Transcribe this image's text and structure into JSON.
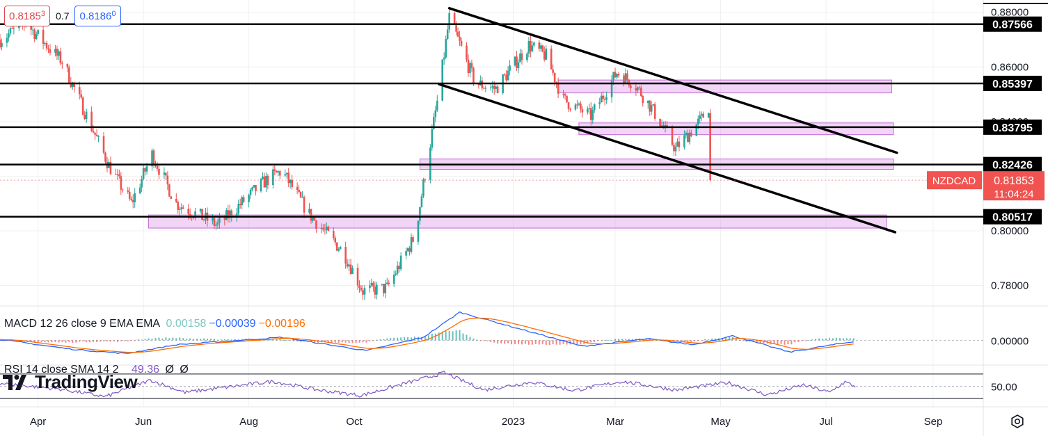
{
  "header": {
    "sell_price": "0.8185",
    "sell_price_sup": "3",
    "spread": "0.7",
    "buy_price": "0.8186",
    "buy_price_sup": "0"
  },
  "macd_legend": {
    "label": "MACD 12 26 close 9 EMA EMA",
    "histogram": "0.00158",
    "macd": "−0.00039",
    "signal": "−0.00196",
    "colors": {
      "histogram": "#7fc7c1",
      "macd": "#2962ff",
      "signal": "#ff6d00"
    }
  },
  "rsi_legend": {
    "label": "RSI 14 close SMA 14 2",
    "value": "49.36",
    "extra1": "Ø",
    "extra2": "Ø",
    "color": "#7e57c2"
  },
  "brand": {
    "name": "TradingView"
  },
  "symbol": {
    "name": "NZDCAD",
    "price": "0.81853",
    "countdown": "11:04:24",
    "color": "#f05350"
  },
  "chart_data": {
    "type": "candlestick",
    "symbol": "NZDCAD",
    "price_axis": {
      "ticks": [
        "0.88000",
        "0.86000",
        "0.84000",
        "0.82000",
        "0.80000",
        "0.78000"
      ],
      "range": [
        0.7725,
        0.8845
      ]
    },
    "time_axis": {
      "labels": [
        "Apr",
        "Jun",
        "Aug",
        "Oct",
        "2023",
        "Mar",
        "May",
        "Jul",
        "Sep"
      ],
      "range": [
        "2022-03-10",
        "2023-09-30"
      ]
    },
    "horizontal_levels": [
      {
        "label": "0.87566",
        "value": 0.87566
      },
      {
        "label": "0.85397",
        "value": 0.85397
      },
      {
        "label": "0.83795",
        "value": 0.83795
      },
      {
        "label": "0.82426",
        "value": 0.82426
      },
      {
        "label": "0.80517",
        "value": 0.80517
      }
    ],
    "zones": [
      {
        "from": "2023-01-27",
        "to": "2023-08-08",
        "low": 0.8505,
        "high": 0.8552
      },
      {
        "from": "2023-02-08",
        "to": "2023-08-09",
        "low": 0.8352,
        "high": 0.8395
      },
      {
        "from": "2022-11-08",
        "to": "2023-08-09",
        "low": 0.8225,
        "high": 0.8263
      },
      {
        "from": "2022-06-04",
        "to": "2023-08-05",
        "low": 0.801,
        "high": 0.8058
      }
    ],
    "trendlines": [
      {
        "from": {
          "date": "2022-11-25",
          "price": 0.8815
        },
        "to": {
          "date": "2023-08-11",
          "price": 0.8286
        }
      },
      {
        "from": {
          "date": "2022-11-19",
          "price": 0.8537
        },
        "to": {
          "date": "2023-08-10",
          "price": 0.7995
        }
      }
    ],
    "candles": {
      "start": "2022-03-10",
      "interval_days": 1,
      "count": 412,
      "anchors": [
        [
          "2022-03-10",
          0.87
        ],
        [
          "2022-03-25",
          0.876
        ],
        [
          "2022-04-15",
          0.862
        ],
        [
          "2022-05-12",
          0.824
        ],
        [
          "2022-05-25",
          0.81
        ],
        [
          "2022-06-06",
          0.828
        ],
        [
          "2022-06-20",
          0.81
        ],
        [
          "2022-07-14",
          0.802
        ],
        [
          "2022-08-10",
          0.818
        ],
        [
          "2022-08-20",
          0.822
        ],
        [
          "2022-09-05",
          0.806
        ],
        [
          "2022-09-25",
          0.792
        ],
        [
          "2022-10-06",
          0.778
        ],
        [
          "2022-10-20",
          0.779
        ],
        [
          "2022-11-05",
          0.798
        ],
        [
          "2022-11-19",
          0.851
        ],
        [
          "2022-11-25",
          0.878
        ],
        [
          "2022-12-10",
          0.854
        ],
        [
          "2022-12-22",
          0.852
        ],
        [
          "2023-01-10",
          0.868
        ],
        [
          "2023-01-20",
          0.864
        ],
        [
          "2023-01-30",
          0.848
        ],
        [
          "2023-02-15",
          0.842
        ],
        [
          "2023-03-02",
          0.858
        ],
        [
          "2023-03-12",
          0.854
        ],
        [
          "2023-03-22",
          0.845
        ],
        [
          "2023-04-05",
          0.83
        ],
        [
          "2023-04-20",
          0.841
        ],
        [
          "2023-04-30",
          0.852
        ],
        [
          "2023-05-08",
          0.849
        ],
        [
          "2023-05-15",
          0.847
        ],
        [
          "2023-05-20",
          0.838
        ],
        [
          "2023-05-28",
          0.822
        ],
        [
          "2023-06-08",
          0.81
        ],
        [
          "2023-06-18",
          0.825
        ],
        [
          "2023-06-26",
          0.817
        ],
        [
          "2023-07-03",
          0.807
        ],
        [
          "2023-07-12",
          0.823
        ],
        [
          "2023-07-18",
          0.819
        ]
      ],
      "last_close": 0.81853
    },
    "macd": {
      "axis_tick": "0.00000",
      "anchors": [
        [
          "2022-03-10",
          0.0003
        ],
        [
          "2022-04-20",
          -0.003
        ],
        [
          "2022-05-22",
          -0.0045
        ],
        [
          "2022-06-20",
          -0.0015
        ],
        [
          "2022-08-20",
          0.001
        ],
        [
          "2022-10-08",
          -0.0035
        ],
        [
          "2022-11-10",
          0.001
        ],
        [
          "2022-12-01",
          0.0095
        ],
        [
          "2023-01-10",
          0.003
        ],
        [
          "2023-02-10",
          -0.002
        ],
        [
          "2023-03-20",
          0.0005
        ],
        [
          "2023-04-15",
          -0.0015
        ],
        [
          "2023-05-08",
          0.0015
        ],
        [
          "2023-06-10",
          -0.004
        ],
        [
          "2023-07-05",
          -0.0015
        ],
        [
          "2023-07-18",
          -0.0004
        ]
      ],
      "range": [
        -0.0065,
        0.0095
      ]
    },
    "rsi": {
      "axis_tick": "50.00",
      "upper": 70,
      "lower": 30,
      "anchors": [
        [
          "2022-03-10",
          55
        ],
        [
          "2022-04-15",
          45
        ],
        [
          "2022-05-10",
          33
        ],
        [
          "2022-06-05",
          60
        ],
        [
          "2022-06-25",
          40
        ],
        [
          "2022-08-15",
          58
        ],
        [
          "2022-09-10",
          44
        ],
        [
          "2022-10-05",
          35
        ],
        [
          "2022-11-22",
          72
        ],
        [
          "2022-12-15",
          44
        ],
        [
          "2023-01-12",
          57
        ],
        [
          "2023-02-05",
          43
        ],
        [
          "2023-03-05",
          58
        ],
        [
          "2023-04-05",
          44
        ],
        [
          "2023-05-05",
          56
        ],
        [
          "2023-05-28",
          36
        ],
        [
          "2023-06-18",
          52
        ],
        [
          "2023-07-03",
          40
        ],
        [
          "2023-07-12",
          57
        ],
        [
          "2023-07-18",
          49.36
        ]
      ]
    }
  }
}
